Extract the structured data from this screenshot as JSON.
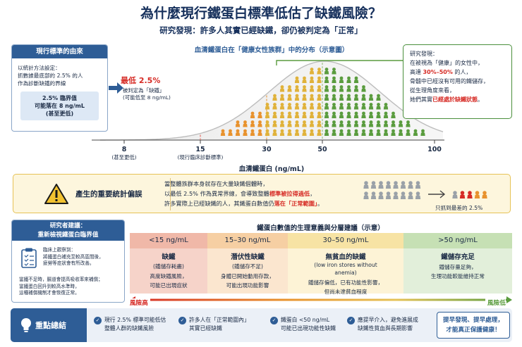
{
  "title": "為什麼現行鐵蛋白標準低估了缺鐵風險？",
  "subtitle": "研究發現：許多人其實已經缺鐵，卻仍被判定為「正常」",
  "origin_box": {
    "header": "現行標準的由來",
    "lines": [
      "以統計方法設定：",
      "抓數據最底部的 2.5% 的人",
      "作為診斷缺鐵的界線"
    ],
    "cutoff_lines": [
      "2.5% 臨界值",
      "可能落在 8 ng/mL",
      "(甚至更低)"
    ]
  },
  "chart": {
    "title": "血清鐵蛋白在「健康女性族群」中的分布（示意圖）",
    "low_label": "最低 2.5%",
    "low_note_lines": [
      "被判定為「缺鐵」",
      "(可能低至 8 ng/mL)"
    ],
    "ticks": [
      {
        "value": 8,
        "label": "8",
        "note": "(甚至更低)"
      },
      {
        "value": 15,
        "label": "15",
        "note": "(現行臨床診斷標準)"
      },
      {
        "value": 30,
        "label": "30",
        "note": ""
      },
      {
        "value": 50,
        "label": "50",
        "note": ""
      },
      {
        "value": 100,
        "label": "100",
        "note": ""
      }
    ],
    "xlabel": "血清鐵蛋白 (ng/mL)"
  },
  "finding_box": {
    "line1": "研究發現：",
    "line2": "在被視為「健康」的女性中，",
    "line3_pre": "高達 ",
    "line3_hl": "30%–50%",
    "line3_post": " 的人，",
    "line4": "骨髓中已經沒有可用的鐵儲存，",
    "line5": "從生理角度來看，",
    "line6_pre": "她們其實",
    "line6_hl": "已經處於缺鐵狀態",
    "line6_post": "。"
  },
  "bias": {
    "label": "產生的重要統計偏誤",
    "line1": "當整體族群本身就存在大量缺鐵個體時，",
    "line2_pre": "以最低 2.5% 作為異常界線，會導致整體",
    "line2_hl": "標準被拉得過低",
    "line2_post": "，",
    "line3_pre": "許多實際上已經缺鐵的人，其鐵蛋白數值仍",
    "line3_hl": "落在「正常範圍」",
    "line3_post": "。",
    "caption": "只抓到最差的 2.5%"
  },
  "researcher": {
    "header_lines": [
      "研究者建議：",
      "重新檢視鐵蛋白臨界值"
    ],
    "clinical_lines": [
      "臨床上觀察到：",
      "將鐵蛋白補充至較高區間後，",
      "疲勞等症狀會有所改善。"
    ],
    "note_lines": [
      "當鐵不足時，腸道會提高吸收率來補償；",
      "當鐵蛋白回升到較高水準時，",
      "這種補償機制才會恢復正常。"
    ]
  },
  "zones_title": "鐵蛋白數值的生理意義與分層建議（示意）",
  "zones": [
    {
      "range": "<15 ng/mL",
      "name": "缺鐵",
      "sub": "(鐵儲存耗盡)",
      "desc": [
        "高度缺鐵風險，",
        "可能已出現症狀"
      ],
      "color": "#f6d3c9",
      "head": "#f0b8a8",
      "name_color": "#1a2a44"
    },
    {
      "range": "15–30 ng/mL",
      "name": "潛伏性缺鐵",
      "sub": "(鐵儲存不足)",
      "desc": [
        "身體已開始動用存款，",
        "可能出現功能影響"
      ],
      "color": "#fbe6cf",
      "head": "#f6cfa3",
      "name_color": "#1a2a44"
    },
    {
      "range": "30–50 ng/mL",
      "name": "無貧血的缺鐵",
      "sub": "(low iron stores without anemia)",
      "desc": [
        "鐵儲存偏低，已有功能性影響，",
        "但尚未達貧血程度"
      ],
      "color": "#fdf3d6",
      "head": "#f7e3a4",
      "name_color": "#1a2a44"
    },
    {
      "range": ">50 ng/mL",
      "name": "鐵儲存充足",
      "sub": "",
      "desc": [
        "鐵儲存量足夠，",
        "生理功能較能維持正常"
      ],
      "color": "#e2efda",
      "head": "#c6e0b4",
      "name_color": "#1a2a44"
    }
  ],
  "risk_high": "風險高",
  "risk_low": "風險低",
  "summary": {
    "label": "重點總結",
    "items": [
      [
        "現行 2.5% 標準可能低估",
        "整體人群的缺鐵風險"
      ],
      [
        "許多人在「正常範圍內」",
        "其實已經缺鐵"
      ],
      [
        "鐵蛋白 <50 ng/mL",
        "可能已出現功能性缺鐵"
      ],
      [
        "應提早介入，避免進展成",
        "缺鐵性貧血與長期影響"
      ]
    ],
    "cta_lines": [
      "提早發現、提早處理，",
      "才能真正保護健康！"
    ]
  },
  "colors": {
    "navy": "#2e5d96",
    "red": "#d62b25",
    "orange": "#e8922d",
    "yellow": "#e0b23a",
    "green": "#5a9c3e"
  }
}
